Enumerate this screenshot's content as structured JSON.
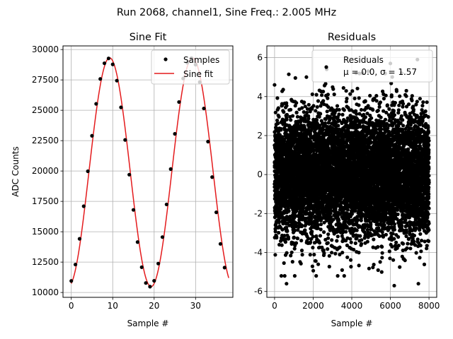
{
  "suptitle": "Run 2068, channel1, Sine Freq.: 2.005 MHz",
  "chart_data": [
    {
      "type": "scatter",
      "title": "Sine Fit",
      "xlabel": "Sample #",
      "ylabel": "ADC Counts",
      "xlim": [
        -2,
        39
      ],
      "ylim": [
        9600,
        30300
      ],
      "xticks": [
        0,
        10,
        20,
        30
      ],
      "yticks": [
        10000,
        12500,
        15000,
        17500,
        20000,
        22500,
        25000,
        27500,
        30000
      ],
      "grid": true,
      "legend_position": "top-right",
      "series": [
        {
          "name": "Samples",
          "kind": "scatter",
          "color": "#000000",
          "x": [
            0,
            1,
            2,
            3,
            4,
            5,
            6,
            7,
            8,
            9,
            10,
            11,
            12,
            13,
            14,
            15,
            16,
            17,
            18,
            19,
            20,
            21,
            22,
            23,
            24,
            25,
            26,
            27,
            28,
            29,
            30,
            31,
            32,
            33,
            34,
            35,
            36,
            37
          ],
          "y": [
            10950,
            12300,
            14420,
            17100,
            19980,
            22900,
            25530,
            27580,
            28870,
            29270,
            28780,
            27440,
            25240,
            22560,
            19700,
            16800,
            14150,
            12080,
            10780,
            10480,
            10960,
            12380,
            14560,
            17250,
            20160,
            23060,
            25680,
            27620,
            28920,
            29300,
            28760,
            27320,
            25150,
            22420,
            19500,
            16600,
            14000,
            12050
          ]
        },
        {
          "name": "Sine fit",
          "kind": "line",
          "color": "#e41a1c",
          "fit": {
            "offset": 19900,
            "amplitude": 9420,
            "period": 20.0,
            "peak_at": 9.25,
            "x_range": [
              0,
              38
            ]
          }
        }
      ]
    },
    {
      "type": "scatter",
      "title": "Residuals",
      "xlabel": "Sample #",
      "ylabel": "",
      "xlim": [
        -400,
        8400
      ],
      "ylim": [
        -6.3,
        6.6
      ],
      "xticks": [
        0,
        2000,
        4000,
        6000,
        8000
      ],
      "yticks": [
        -6,
        -4,
        -2,
        0,
        2,
        4,
        6
      ],
      "grid": true,
      "legend_position": "top-right",
      "series": [
        {
          "name": "Residuals",
          "stats_label": "μ = 0.0, σ = 1.57",
          "kind": "scatter",
          "color": "#000000",
          "n_points": 8000,
          "mean": 0.0,
          "std": 1.57,
          "x_range": [
            0,
            7999
          ],
          "outliers": [
            {
              "x": 620,
              "y": -5.6
            },
            {
              "x": 6200,
              "y": -5.7
            },
            {
              "x": 7450,
              "y": -5.6
            },
            {
              "x": 7400,
              "y": 5.9
            },
            {
              "x": 6000,
              "y": 5.7
            },
            {
              "x": 2700,
              "y": 5.4
            },
            {
              "x": 0,
              "y": 4.6
            },
            {
              "x": 1650,
              "y": 5.0
            },
            {
              "x": 4850,
              "y": 5.3
            },
            {
              "x": 5550,
              "y": -5.0
            },
            {
              "x": 3500,
              "y": -4.9
            }
          ]
        }
      ]
    }
  ]
}
